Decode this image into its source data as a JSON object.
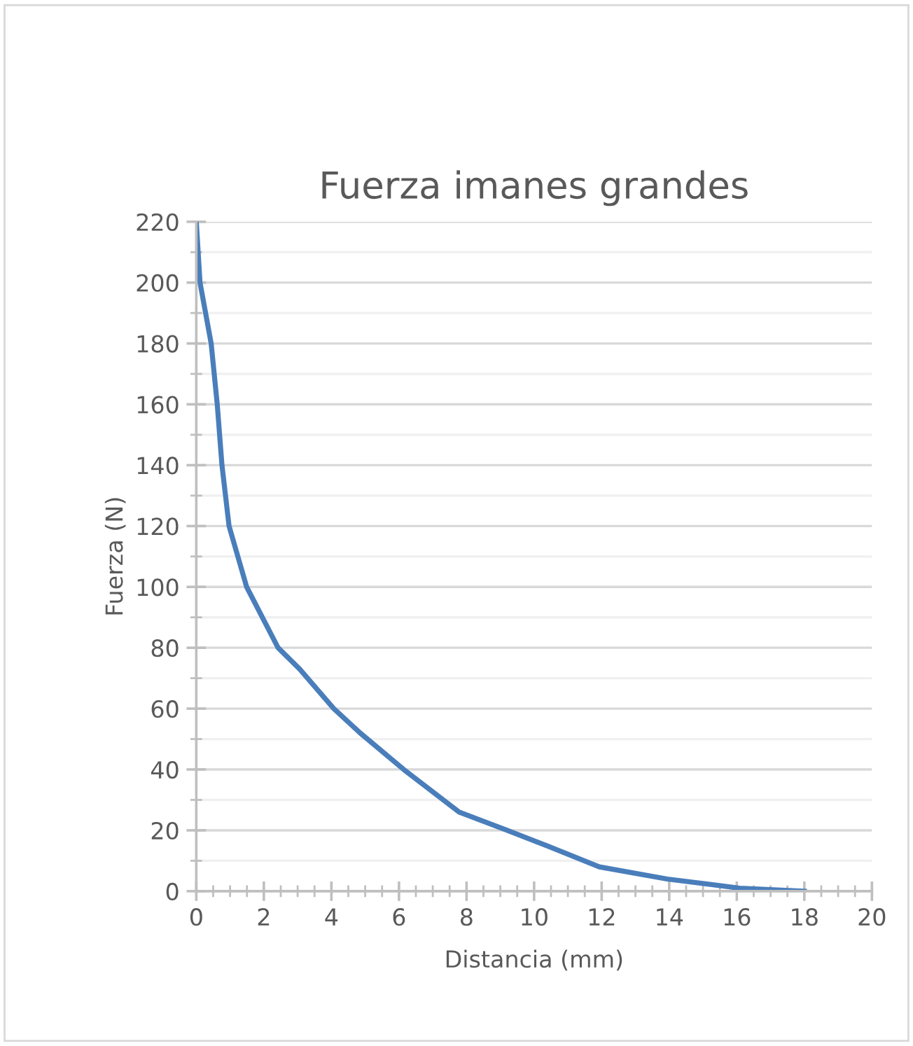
{
  "chart_data": {
    "type": "line",
    "title": "Fuerza imanes grandes",
    "xlabel": "Distancia (mm)",
    "ylabel": "Fuerza (N)",
    "x": [
      0,
      0.11,
      0.44,
      0.62,
      0.76,
      0.97,
      1.49,
      2.42,
      3.06,
      4.07,
      4.85,
      6.14,
      7.78,
      9.2,
      10.36,
      11.93,
      13.94,
      16.08,
      18
    ],
    "series": [
      {
        "color": "#4a7ebb",
        "values": [
          220,
          200,
          180,
          160,
          140,
          120,
          100,
          80,
          73,
          60,
          52,
          40,
          26,
          20,
          15,
          8,
          4,
          1,
          0
        ]
      }
    ],
    "xlim": [
      0,
      20
    ],
    "xticks": [
      0,
      2,
      4,
      6,
      8,
      10,
      12,
      14,
      16,
      18,
      20
    ],
    "ylim": [
      0,
      220
    ],
    "yticks": [
      0,
      20,
      40,
      60,
      80,
      100,
      120,
      140,
      160,
      180,
      200,
      220
    ],
    "grid": "y",
    "marker": "none",
    "line_style": "solid"
  }
}
